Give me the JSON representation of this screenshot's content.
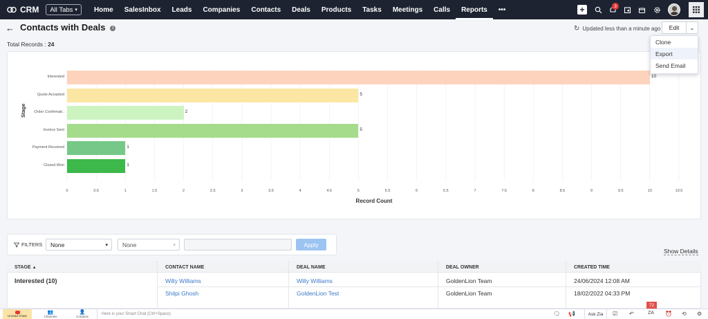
{
  "header": {
    "brand": "CRM",
    "all_tabs": "All Tabs",
    "nav": [
      "Home",
      "SalesInbox",
      "Leads",
      "Companies",
      "Contacts",
      "Deals",
      "Products",
      "Tasks",
      "Meetings",
      "Calls",
      "Reports"
    ],
    "active_tab": "Reports",
    "more": "•••",
    "notification_count": "3"
  },
  "report": {
    "title": "Contacts with Deals",
    "updated": "Updated less than a minute ago",
    "edit_label": "Edit",
    "total_label": "Total Records :",
    "total_value": "24"
  },
  "menu": [
    "Clone",
    "Export",
    "Send Email"
  ],
  "chart_data": {
    "type": "bar",
    "orientation": "horizontal",
    "categories": [
      "Interested",
      "Quote Accepted",
      "Order Confirmati..",
      "Invoice Sent",
      "Payment Received",
      "Closed Won"
    ],
    "values": [
      10,
      5,
      2,
      5,
      1,
      1
    ],
    "colors": [
      "#fdd3bd",
      "#fbe7a3",
      "#cdf3c1",
      "#a5dc8c",
      "#76c889",
      "#3cb94a"
    ],
    "xlabel": "Record Count",
    "ylabel": "Stage",
    "xlim": [
      0,
      10.5
    ],
    "xticks": [
      "0",
      "0.5",
      "1",
      "1.5",
      "2",
      "2.5",
      "3",
      "3.5",
      "4",
      "4.5",
      "5",
      "5.5",
      "6",
      "6.5",
      "7",
      "7.5",
      "8",
      "8.5",
      "9",
      "9.5",
      "10",
      "10.5"
    ],
    "grid": true
  },
  "filters": {
    "label": "FILTERS",
    "select1": "None",
    "select2": "None",
    "apply_label": "Apply",
    "show_details": "Show Details"
  },
  "table": {
    "headers": [
      "STAGE",
      "CONTACT NAME",
      "DEAL NAME",
      "DEAL OWNER",
      "CREATED TIME"
    ],
    "group": "Interested (10)",
    "rows": [
      {
        "contact": "Willy Williams",
        "deal": "Willy Williams",
        "owner": "GoldenLion Team",
        "created": "24/06/2024 12:08 AM"
      },
      {
        "contact": "Shilpi Ghosh",
        "deal": "GoldenLion Test",
        "owner": "GoldenLion Team",
        "created": "18/02/2022 04:33 PM"
      }
    ]
  },
  "bottombar": {
    "chats": "Unread Chats",
    "channels": "Channels",
    "contacts": "Contacts",
    "chat_placeholder": "Here is your Smart Chat (Ctrl+Space)",
    "ask_zia": "Ask Zia",
    "badge": "72"
  }
}
